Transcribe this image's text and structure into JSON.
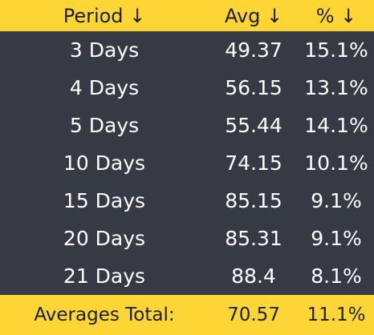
{
  "header": {
    "period": "Period ↓",
    "avg": "Avg ↓",
    "pct": "% ↓"
  },
  "rows": [
    {
      "period": "3 Days",
      "avg": "49.37",
      "pct": "15.1%"
    },
    {
      "period": "4 Days",
      "avg": "56.15",
      "pct": "13.1%"
    },
    {
      "period": "5 Days",
      "avg": "55.44",
      "pct": "14.1%"
    },
    {
      "period": "10 Days",
      "avg": "74.15",
      "pct": "10.1%"
    },
    {
      "period": "15 Days",
      "avg": "85.15",
      "pct": "9.1%"
    },
    {
      "period": "20 Days",
      "avg": "85.31",
      "pct": "9.1%"
    },
    {
      "period": "21 Days",
      "avg": "88.4",
      "pct": "8.1%"
    }
  ],
  "footer": {
    "label": "Averages Total:",
    "avg": "70.57",
    "pct": "11.1%"
  },
  "colors": {
    "accent": "#fdd535",
    "background": "#363a45",
    "header_text": "#1d1f24",
    "body_text": "#ffffff"
  }
}
